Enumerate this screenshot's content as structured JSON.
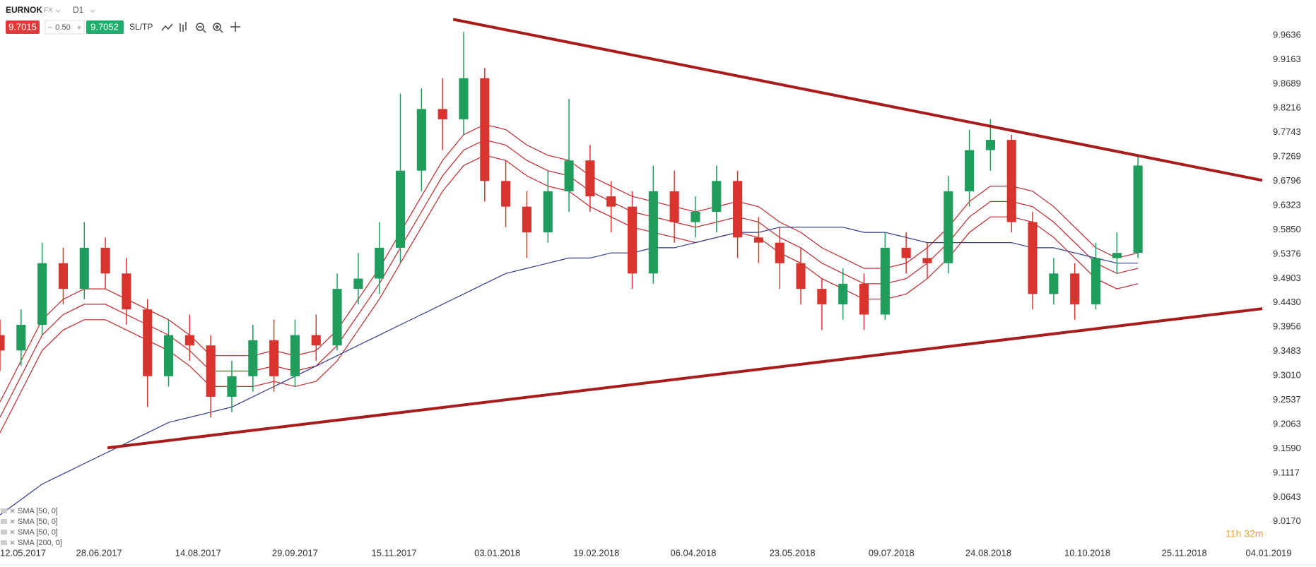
{
  "header": {
    "symbol": "EURNOK",
    "market": "FX",
    "timeframe": "D1",
    "bid": "9.7015",
    "spread": "0.50",
    "ask": "9.7052",
    "sltp": "SL/TP"
  },
  "countdown": "11h 32m",
  "chart_data": {
    "type": "candlestick",
    "up_color": "#1f9d5c",
    "down_color": "#d8342f",
    "x": [
      "12.05.2017",
      "22.05.2017",
      "01.06.2017",
      "11.06.2017",
      "21.06.2017",
      "01.07.2017",
      "11.07.2017",
      "21.07.2017",
      "31.07.2017",
      "10.08.2017",
      "20.08.2017",
      "30.08.2017",
      "09.09.2017",
      "19.09.2017",
      "29.09.2017",
      "09.10.2017",
      "19.10.2017",
      "29.10.2017",
      "08.11.2017",
      "18.11.2017",
      "28.11.2017",
      "08.12.2017",
      "18.12.2017",
      "28.12.2017",
      "07.01.2018",
      "17.01.2018",
      "27.01.2018",
      "06.02.2018",
      "16.02.2018",
      "26.02.2018",
      "08.03.2018",
      "18.03.2018",
      "28.03.2018",
      "07.04.2018",
      "17.04.2018",
      "27.04.2018",
      "07.05.2018",
      "17.05.2018",
      "27.05.2018",
      "06.06.2018",
      "16.06.2018",
      "26.06.2018",
      "06.07.2018",
      "16.07.2018",
      "26.07.2018",
      "05.08.2018",
      "15.08.2018",
      "25.08.2018",
      "04.09.2018",
      "14.09.2018",
      "24.09.2018",
      "04.10.2018",
      "14.10.2018",
      "24.10.2018",
      "03.11.2018"
    ],
    "open": [
      9.38,
      9.35,
      9.4,
      9.52,
      9.47,
      9.55,
      9.5,
      9.43,
      9.3,
      9.38,
      9.36,
      9.26,
      9.3,
      9.37,
      9.3,
      9.38,
      9.36,
      9.47,
      9.49,
      9.55,
      9.7,
      9.82,
      9.8,
      9.88,
      9.68,
      9.63,
      9.58,
      9.66,
      9.72,
      9.65,
      9.63,
      9.5,
      9.66,
      9.6,
      9.62,
      9.68,
      9.57,
      9.56,
      9.52,
      9.47,
      9.44,
      9.48,
      9.42,
      9.55,
      9.53,
      9.52,
      9.66,
      9.74,
      9.76,
      9.6,
      9.46,
      9.5,
      9.44,
      9.53,
      9.54
    ],
    "high": [
      9.41,
      9.43,
      9.56,
      9.55,
      9.6,
      9.57,
      9.53,
      9.45,
      9.41,
      9.42,
      9.38,
      9.33,
      9.4,
      9.41,
      9.41,
      9.42,
      9.5,
      9.54,
      9.6,
      9.85,
      9.86,
      9.88,
      9.97,
      9.9,
      9.72,
      9.66,
      9.7,
      9.84,
      9.75,
      9.68,
      9.66,
      9.71,
      9.7,
      9.65,
      9.71,
      9.7,
      9.61,
      9.59,
      9.55,
      9.49,
      9.51,
      9.5,
      9.58,
      9.58,
      9.56,
      9.69,
      9.78,
      9.8,
      9.77,
      9.62,
      9.53,
      9.52,
      9.56,
      9.58,
      9.73
    ],
    "low": [
      9.31,
      9.32,
      9.38,
      9.44,
      9.45,
      9.47,
      9.4,
      9.24,
      9.28,
      9.33,
      9.22,
      9.23,
      9.27,
      9.27,
      9.28,
      9.33,
      9.35,
      9.44,
      9.46,
      9.52,
      9.66,
      9.74,
      9.77,
      9.64,
      9.59,
      9.53,
      9.56,
      9.62,
      9.62,
      9.58,
      9.47,
      9.48,
      9.56,
      9.57,
      9.58,
      9.53,
      9.52,
      9.47,
      9.44,
      9.39,
      9.41,
      9.39,
      9.41,
      9.5,
      9.49,
      9.5,
      9.63,
      9.7,
      9.58,
      9.43,
      9.44,
      9.41,
      9.43,
      9.5,
      9.53
    ],
    "close": [
      9.35,
      9.4,
      9.52,
      9.47,
      9.55,
      9.5,
      9.43,
      9.3,
      9.38,
      9.36,
      9.26,
      9.3,
      9.37,
      9.3,
      9.38,
      9.36,
      9.47,
      9.49,
      9.55,
      9.7,
      9.82,
      9.8,
      9.88,
      9.68,
      9.63,
      9.58,
      9.66,
      9.72,
      9.65,
      9.63,
      9.5,
      9.66,
      9.6,
      9.62,
      9.68,
      9.57,
      9.56,
      9.52,
      9.47,
      9.44,
      9.48,
      9.42,
      9.55,
      9.53,
      9.52,
      9.66,
      9.74,
      9.76,
      9.6,
      9.46,
      9.5,
      9.44,
      9.53,
      9.54,
      9.71
    ],
    "series": [
      {
        "name": "SMA [50, 0]",
        "color": "#c0272d",
        "values": [
          9.25,
          9.33,
          9.41,
          9.45,
          9.47,
          9.47,
          9.45,
          9.43,
          9.41,
          9.38,
          9.34,
          9.34,
          9.34,
          9.35,
          9.34,
          9.35,
          9.39,
          9.45,
          9.51,
          9.58,
          9.65,
          9.72,
          9.77,
          9.79,
          9.78,
          9.75,
          9.73,
          9.72,
          9.69,
          9.67,
          9.65,
          9.64,
          9.63,
          9.62,
          9.63,
          9.64,
          9.63,
          9.6,
          9.58,
          9.55,
          9.53,
          9.51,
          9.51,
          9.52,
          9.55,
          9.59,
          9.64,
          9.67,
          9.67,
          9.66,
          9.63,
          9.59,
          9.55,
          9.53,
          9.54
        ]
      },
      {
        "name": "SMA [50, 0]",
        "color": "#c0272d",
        "values": [
          9.22,
          9.3,
          9.38,
          9.42,
          9.44,
          9.44,
          9.42,
          9.4,
          9.38,
          9.35,
          9.31,
          9.31,
          9.31,
          9.32,
          9.31,
          9.32,
          9.36,
          9.42,
          9.48,
          9.55,
          9.62,
          9.69,
          9.74,
          9.76,
          9.75,
          9.72,
          9.7,
          9.69,
          9.66,
          9.64,
          9.62,
          9.61,
          9.6,
          9.59,
          9.6,
          9.61,
          9.6,
          9.57,
          9.55,
          9.52,
          9.5,
          9.48,
          9.48,
          9.49,
          9.52,
          9.56,
          9.61,
          9.64,
          9.64,
          9.63,
          9.6,
          9.56,
          9.52,
          9.5,
          9.51
        ]
      },
      {
        "name": "SMA [50, 0]",
        "color": "#c0272d",
        "values": [
          9.19,
          9.27,
          9.35,
          9.39,
          9.41,
          9.41,
          9.39,
          9.37,
          9.35,
          9.32,
          9.28,
          9.28,
          9.28,
          9.29,
          9.28,
          9.29,
          9.33,
          9.39,
          9.45,
          9.52,
          9.59,
          9.66,
          9.71,
          9.73,
          9.72,
          9.69,
          9.67,
          9.66,
          9.63,
          9.61,
          9.59,
          9.58,
          9.57,
          9.56,
          9.57,
          9.58,
          9.57,
          9.54,
          9.52,
          9.49,
          9.47,
          9.45,
          9.45,
          9.46,
          9.49,
          9.53,
          9.58,
          9.61,
          9.61,
          9.6,
          9.57,
          9.53,
          9.49,
          9.47,
          9.48
        ]
      },
      {
        "name": "SMA [200, 0]",
        "color": "#2e3a8c",
        "values": [
          9.03,
          9.06,
          9.09,
          9.11,
          9.13,
          9.15,
          9.17,
          9.19,
          9.21,
          9.22,
          9.23,
          9.24,
          9.26,
          9.28,
          9.3,
          9.32,
          9.34,
          9.36,
          9.38,
          9.4,
          9.42,
          9.44,
          9.46,
          9.48,
          9.5,
          9.51,
          9.52,
          9.53,
          9.53,
          9.54,
          9.54,
          9.55,
          9.55,
          9.56,
          9.57,
          9.58,
          9.58,
          9.59,
          9.59,
          9.59,
          9.59,
          9.58,
          9.58,
          9.57,
          9.56,
          9.56,
          9.56,
          9.56,
          9.56,
          9.55,
          9.55,
          9.54,
          9.53,
          9.52,
          9.52
        ]
      }
    ],
    "trendlines": [
      {
        "color": "#a81c1c",
        "x": [
          "13.12.2017",
          "01.01.2019"
        ],
        "values": [
          9.9946,
          9.6812
        ]
      },
      {
        "color": "#a81c1c",
        "x": [
          "02.07.2017",
          "01.01.2019"
        ],
        "values": [
          9.1606,
          9.4315
        ]
      }
    ],
    "xlim": [
      "12.05.2017",
      "04.01.2019"
    ],
    "xticks": [
      "12.05.2017",
      "28.06.2017",
      "14.08.2017",
      "29.09.2017",
      "15.11.2017",
      "03.01.2018",
      "19.02.2018",
      "06.04.2018",
      "23.05.2018",
      "09.07.2018",
      "24.08.2018",
      "10.10.2018",
      "25.11.2018",
      "04.01.2019"
    ],
    "ylim": [
      8.9713,
      10.0322
    ],
    "yticks": [
      9.9636,
      9.9163,
      9.8689,
      9.8216,
      9.7743,
      9.7269,
      9.6796,
      9.6323,
      {
        "value": 9.585,
        "label": "9.5850"
      },
      9.5376,
      9.4903,
      {
        "value": 9.443,
        "label": "9.4430"
      },
      9.3956,
      9.3483,
      {
        "value": 9.301,
        "label": "9.3010"
      },
      9.2537,
      9.2063,
      {
        "value": 9.159,
        "label": "9.1590"
      },
      9.1117,
      9.0643,
      {
        "value": 9.017,
        "label": "9.0170"
      }
    ]
  }
}
